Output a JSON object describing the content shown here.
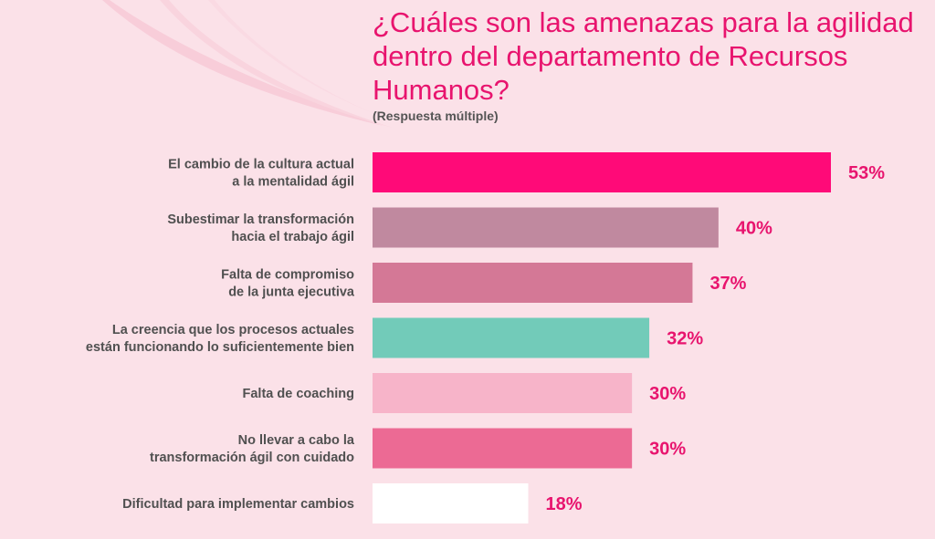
{
  "title": "¿Cuáles son las amenazas para la agilidad dentro del departamento de Recursos Humanos?",
  "subtitle": "(Respuesta múltiple)",
  "colors": {
    "background": "#fbe1e8",
    "accent": "#e8146e",
    "label_text": "#505050"
  },
  "chart_data": {
    "type": "bar",
    "orientation": "horizontal",
    "categories": [
      [
        "El cambio de la cultura actual",
        "a la mentalidad ágil"
      ],
      [
        "Subestimar la transformación",
        "hacia el trabajo ágil"
      ],
      [
        "Falta de compromiso",
        "de la junta ejecutiva"
      ],
      [
        "La creencia que los procesos actuales",
        "están funcionando lo suficientemente bien"
      ],
      [
        "Falta de coaching"
      ],
      [
        "No llevar a cabo la",
        "transformación ágil con cuidado"
      ],
      [
        "Dificultad para implementar cambios"
      ]
    ],
    "values": [
      53,
      40,
      37,
      32,
      30,
      30,
      18
    ],
    "value_labels": [
      "53%",
      "40%",
      "37%",
      "32%",
      "30%",
      "30%",
      "18%"
    ],
    "bar_colors": [
      "#ff0a78",
      "#c0899f",
      "#d47896",
      "#72cbb9",
      "#f7b4c9",
      "#ec6a94",
      "#ffffff"
    ],
    "xlim": [
      0,
      100
    ],
    "grid": false,
    "legend": "none"
  }
}
